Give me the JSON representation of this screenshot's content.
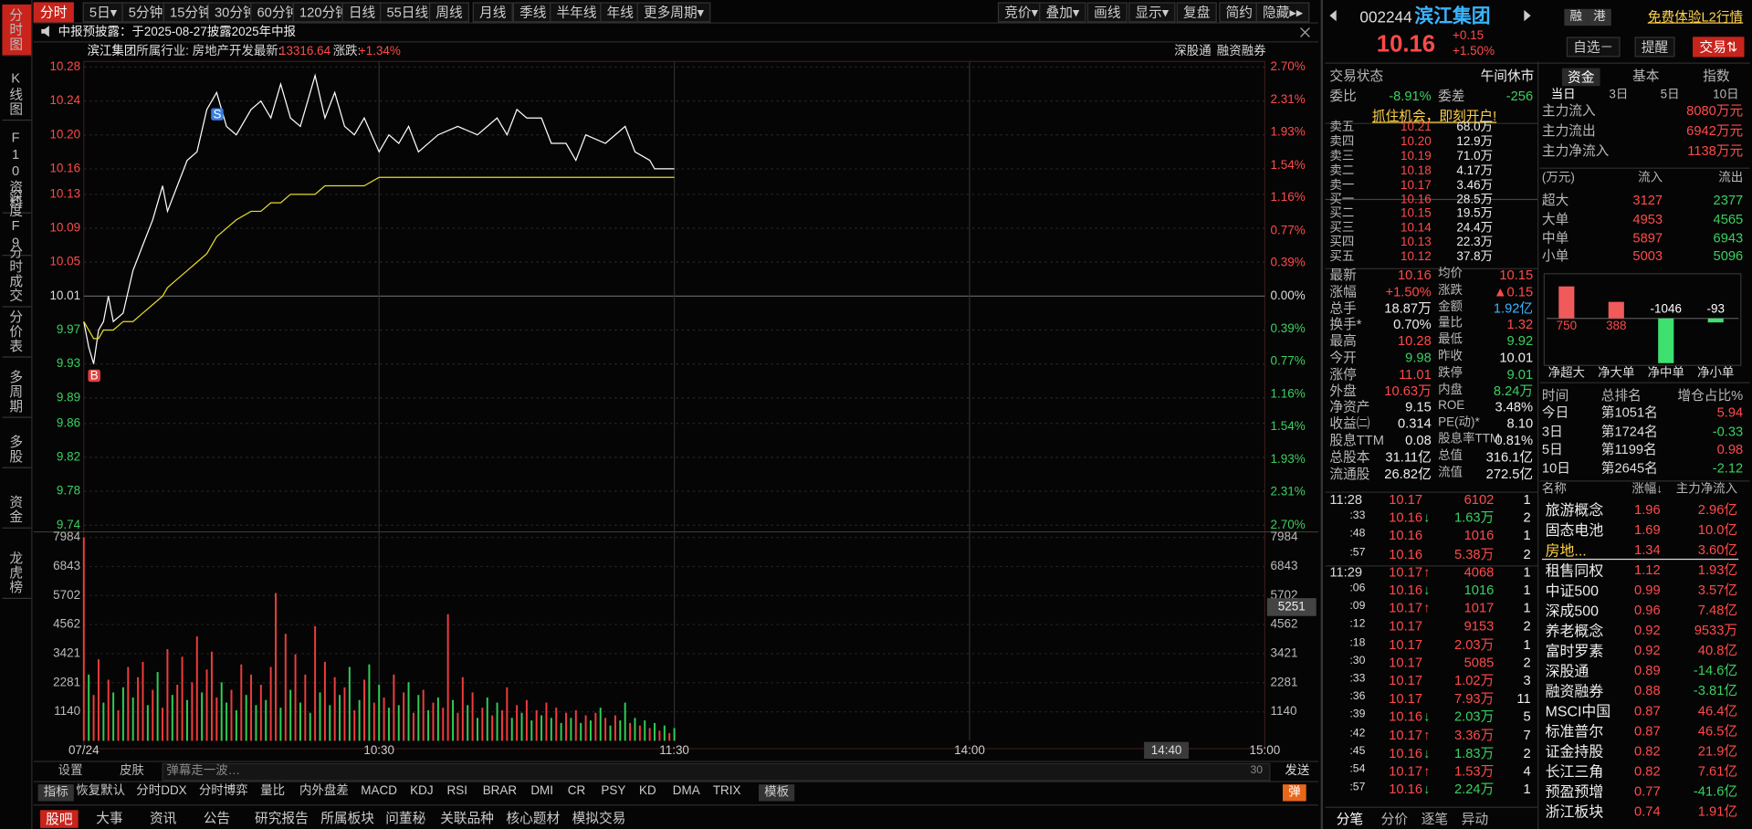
{
  "side_tabs": [
    "分时图",
    "K线图",
    "F10资料",
    "深度F9",
    "分时成交",
    "分价表",
    "多周期",
    "多股",
    "资金",
    "龙虎榜"
  ],
  "toolbar": {
    "periods": [
      "分时",
      "5日▾",
      "5分钟",
      "15分钟",
      "30分钟",
      "60分钟",
      "120分钟",
      "日线",
      "55日线",
      "周线",
      "月线",
      "季线",
      "半年线",
      "年线",
      "更多周期▾"
    ],
    "tools": [
      "竞价▾",
      "叠加▾",
      "画线",
      "显示▾",
      "复盘",
      "简约",
      "隐藏▸▸"
    ]
  },
  "notice": "中报预披露：于2025-08-27披露2025年中报",
  "info": {
    "name": "滨江集团",
    "industry": "所属行业: 房地产开发",
    "latest_label": "最新:",
    "latest": "13316.64",
    "change_label": "涨跌:",
    "change": "+1.34%",
    "links": [
      "深股通",
      "融资融券"
    ]
  },
  "chart_data": [
    {
      "type": "line",
      "x": [
        0,
        1,
        2,
        3,
        4,
        5,
        6,
        8,
        10,
        12,
        14,
        16,
        17,
        19,
        21,
        23,
        25,
        27,
        29,
        31,
        34,
        36,
        38,
        40,
        42,
        44,
        47,
        49,
        51,
        53,
        55,
        57,
        60,
        62,
        64,
        66,
        68,
        72,
        76,
        80,
        84,
        86,
        88,
        90,
        93,
        95,
        98,
        100,
        102,
        106,
        110,
        112,
        115,
        116,
        120
      ],
      "series": [
        {
          "color": "#ffffff",
          "values": [
            9.98,
            9.95,
            9.93,
            9.97,
            9.98,
            10.01,
            9.98,
            9.99,
            10.04,
            10.07,
            10.1,
            10.14,
            10.11,
            10.14,
            10.17,
            10.18,
            10.23,
            10.25,
            10.21,
            10.2,
            10.23,
            10.24,
            10.22,
            10.26,
            10.22,
            10.21,
            10.27,
            10.22,
            10.25,
            10.21,
            10.2,
            10.22,
            10.18,
            10.2,
            10.19,
            10.21,
            10.18,
            10.2,
            10.21,
            10.2,
            10.22,
            10.2,
            10.23,
            10.22,
            10.22,
            10.19,
            10.19,
            10.17,
            10.2,
            10.19,
            10.21,
            10.18,
            10.17,
            10.16,
            10.16
          ]
        },
        {
          "color": "#e6dc2a",
          "values": [
            9.98,
            9.97,
            9.96,
            9.96,
            9.97,
            9.97,
            9.97,
            9.98,
            9.98,
            9.99,
            10.0,
            10.01,
            10.02,
            10.03,
            10.04,
            10.05,
            10.06,
            10.08,
            10.09,
            10.1,
            10.11,
            10.11,
            10.12,
            10.12,
            10.13,
            10.13,
            10.13,
            10.14,
            10.14,
            10.14,
            10.14,
            10.14,
            10.15,
            10.15,
            10.15,
            10.15,
            10.15,
            10.15,
            10.15,
            10.15,
            10.15,
            10.15,
            10.15,
            10.15,
            10.15,
            10.15,
            10.15,
            10.15,
            10.15,
            10.15,
            10.15,
            10.15,
            10.15,
            10.15,
            10.15
          ]
        }
      ],
      "xlim": [
        0,
        240
      ],
      "xticks": [
        {
          "value": 0,
          "label": "07/24"
        },
        {
          "value": 60,
          "label": "10:30"
        },
        {
          "value": 120,
          "label": "11:30"
        },
        {
          "value": 180,
          "label": "14:00"
        },
        {
          "value": 240,
          "label": "15:00"
        }
      ],
      "ylim": [
        9.74,
        10.28
      ],
      "yticks": [
        10.28,
        10.24,
        {
          "value": 10.2,
          "label": "10.20"
        },
        10.16,
        10.13,
        10.09,
        10.05,
        10.01,
        9.97,
        9.93,
        9.89,
        9.86,
        9.82,
        9.78,
        9.74
      ],
      "y2lim": [
        -2.7,
        2.7
      ],
      "y2ticks": [
        {
          "value": 2.7,
          "label": "2.70%"
        },
        {
          "value": 2.31,
          "label": "2.31%"
        },
        {
          "value": 1.93,
          "label": "1.93%"
        },
        {
          "value": 1.54,
          "label": "1.54%"
        },
        {
          "value": 1.16,
          "label": "1.16%"
        },
        {
          "value": 0.77,
          "label": "0.77%"
        },
        {
          "value": 0.39,
          "label": "0.39%"
        },
        {
          "value": 0,
          "label": "0.00%"
        },
        {
          "value": -0.39,
          "label": "0.39%"
        },
        {
          "value": -0.77,
          "label": "0.77%"
        },
        {
          "value": -1.16,
          "label": "1.16%"
        },
        {
          "value": -1.54,
          "label": "1.54%"
        },
        {
          "value": -1.93,
          "label": "1.93%"
        },
        {
          "value": -2.31,
          "label": "2.31%"
        },
        {
          "value": -2.7,
          "label": "2.70%"
        }
      ],
      "annotations": [
        {
          "text": "B",
          "x": 2,
          "y": 9.93
        },
        {
          "text": "S",
          "x": 27,
          "y": 10.25
        }
      ],
      "cursor_label": {
        "value": 220,
        "label": "14:40"
      },
      "grid": true
    },
    {
      "type": "bar",
      "x": [
        0,
        1,
        2,
        3,
        4,
        5,
        6,
        7,
        8,
        9,
        10,
        11,
        12,
        13,
        14,
        15,
        16,
        17,
        18,
        19,
        20,
        21,
        22,
        23,
        24,
        25,
        26,
        27,
        28,
        29,
        30,
        31,
        32,
        33,
        34,
        35,
        36,
        37,
        38,
        39,
        40,
        41,
        42,
        43,
        44,
        45,
        46,
        47,
        48,
        49,
        50,
        51,
        52,
        53,
        54,
        55,
        56,
        57,
        58,
        59,
        60,
        61,
        62,
        63,
        64,
        65,
        66,
        67,
        68,
        69,
        70,
        71,
        72,
        73,
        74,
        75,
        76,
        77,
        78,
        79,
        80,
        81,
        82,
        83,
        84,
        85,
        86,
        87,
        88,
        89,
        90,
        91,
        92,
        93,
        94,
        95,
        96,
        97,
        98,
        99,
        100,
        101,
        102,
        103,
        104,
        105,
        106,
        107,
        108,
        109,
        110,
        111,
        112,
        113,
        114,
        115,
        116,
        117,
        118,
        119,
        120
      ],
      "values": [
        7984,
        2600,
        1800,
        3200,
        1500,
        2400,
        1900,
        1200,
        2100,
        2900,
        1700,
        2500,
        3100,
        1400,
        2000,
        2700,
        1300,
        3600,
        1800,
        2200,
        3300,
        1600,
        2300,
        4100,
        1900,
        2800,
        3500,
        1700,
        2300,
        1500,
        2000,
        1200,
        3000,
        1800,
        2600,
        1400,
        2200,
        1600,
        2900,
        5800,
        1300,
        4200,
        2000,
        3400,
        1500,
        2600,
        1100,
        4500,
        1900,
        3100,
        1400,
        2500,
        1800,
        2100,
        2900,
        1200,
        1600,
        2400,
        3000,
        1500,
        2200,
        1700,
        1300,
        2600,
        1400,
        1900,
        2300,
        1100,
        1800,
        2000,
        1200,
        1500,
        1700,
        1300,
        4970,
        1600,
        1100,
        2500,
        1400,
        1900,
        900,
        1300,
        1700,
        1000,
        1500,
        1200,
        2100,
        900,
        1400,
        1100,
        1600,
        800,
        1200,
        1000,
        1500,
        900,
        1300,
        700,
        1100,
        900,
        1200,
        700,
        1000,
        800,
        1100,
        1300,
        900,
        600,
        1000,
        800,
        1500,
        700,
        900,
        600,
        800,
        500,
        700,
        400,
        600,
        300,
        500
      ],
      "up": [
        true,
        false,
        true,
        true,
        false,
        true,
        false,
        true,
        false,
        true,
        false,
        true,
        true,
        false,
        true,
        false,
        true,
        true,
        false,
        true,
        true,
        false,
        true,
        true,
        false,
        true,
        true,
        true,
        false,
        false,
        true,
        false,
        true,
        false,
        true,
        false,
        true,
        false,
        true,
        true,
        false,
        true,
        false,
        true,
        false,
        true,
        false,
        true,
        false,
        true,
        false,
        true,
        false,
        true,
        false,
        true,
        false,
        true,
        false,
        true,
        false,
        true,
        false,
        true,
        false,
        true,
        false,
        true,
        false,
        true,
        false,
        true,
        false,
        true,
        true,
        false,
        true,
        true,
        false,
        true,
        false,
        true,
        false,
        true,
        false,
        true,
        true,
        false,
        true,
        false,
        true,
        false,
        true,
        false,
        true,
        false,
        true,
        false,
        true,
        false,
        true,
        false,
        true,
        false,
        true,
        false,
        true,
        false,
        true,
        false,
        false,
        true,
        false,
        true,
        false,
        true,
        false,
        true,
        false,
        true,
        false
      ],
      "colors": {
        "up": "#f23c3c",
        "down": "#2fcf55"
      },
      "xlim": [
        0,
        240
      ],
      "ylim": [
        0,
        7984
      ],
      "yticks": [
        1140,
        2281,
        3421,
        4562,
        5702,
        6843,
        7984
      ],
      "cursor_value": 5251
    },
    {
      "type": "bar",
      "categories": [
        "净超大",
        "净大单",
        "净中单",
        "净小单"
      ],
      "values": [
        750,
        388,
        -1046,
        -93
      ],
      "colors": {
        "up": "#f05a5a",
        "down": "#3ee070"
      }
    }
  ],
  "quote": {
    "code": "002244",
    "name": "滨江集团",
    "price": "10.16",
    "change": "+0.15",
    "pct": "+1.50%",
    "badges": [
      "融",
      "港"
    ],
    "status_label": "交易状态",
    "status": "午间休市",
    "wb_label": "委比",
    "wb": "-8.91%",
    "wc_label": "委差",
    "wc": "-256",
    "promo": "抓住机会，即刻开户!",
    "book": [
      [
        "卖五",
        "10.21",
        "68.0万"
      ],
      [
        "卖四",
        "10.20",
        "12.9万"
      ],
      [
        "卖三",
        "10.19",
        "71.0万"
      ],
      [
        "卖二",
        "10.18",
        "4.17万"
      ],
      [
        "卖一",
        "10.17",
        "3.46万"
      ],
      [
        "买一",
        "10.16",
        "28.5万"
      ],
      [
        "买二",
        "10.15",
        "19.5万"
      ],
      [
        "买三",
        "10.14",
        "24.4万"
      ],
      [
        "买四",
        "10.13",
        "22.3万"
      ],
      [
        "买五",
        "10.12",
        "37.8万"
      ]
    ],
    "stats": [
      [
        "最新",
        "10.16",
        "均价",
        "10.15"
      ],
      [
        "涨幅",
        "+1.50%",
        "涨跌",
        "▲0.15"
      ],
      [
        "总手",
        "18.87万",
        "金额",
        "1.92亿"
      ],
      [
        "换手*",
        "0.70%",
        "量比",
        "1.32"
      ],
      [
        "最高",
        "10.28",
        "最低",
        "9.92"
      ],
      [
        "今开",
        "9.98",
        "昨收",
        "10.01"
      ],
      [
        "涨停",
        "11.01",
        "跌停",
        "9.01"
      ],
      [
        "外盘",
        "10.63万",
        "内盘",
        "8.24万"
      ],
      [
        "净资产",
        "9.15",
        "ROE",
        "3.48%"
      ],
      [
        "收益㈡",
        "0.314",
        "PE(动)*",
        "8.10"
      ],
      [
        "股息TTM",
        "0.08",
        "股息率TTM",
        "0.81%"
      ],
      [
        "总股本",
        "31.11亿",
        "总值",
        "316.1亿"
      ],
      [
        "流通股",
        "26.82亿",
        "流值",
        "272.5亿"
      ]
    ],
    "ticks": [
      {
        "time": "11:28",
        "price": "10.17",
        "vol": "6102",
        "n": "1"
      },
      {
        "time": ":33",
        "price": "10.16",
        "arrow": "↓",
        "vol": "1.63万",
        "n": "2"
      },
      {
        "time": ":48",
        "price": "10.16",
        "vol": "1016",
        "n": "1"
      },
      {
        "time": ":57",
        "price": "10.16",
        "vol": "5.38万",
        "n": "2"
      },
      {
        "time": "11:29",
        "price": "10.17",
        "arrow": "↑",
        "vol": "4068",
        "n": "1"
      },
      {
        "time": ":06",
        "price": "10.16",
        "arrow": "↓",
        "vol": "1016",
        "n": "1"
      },
      {
        "time": ":09",
        "price": "10.17",
        "arrow": "↑",
        "vol": "1017",
        "n": "1"
      },
      {
        "time": ":12",
        "price": "10.17",
        "vol": "9153",
        "n": "2"
      },
      {
        "time": ":18",
        "price": "10.17",
        "vol": "2.03万",
        "n": "1"
      },
      {
        "time": ":30",
        "price": "10.17",
        "vol": "5085",
        "n": "2"
      },
      {
        "time": ":33",
        "price": "10.17",
        "vol": "1.02万",
        "n": "3"
      },
      {
        "time": ":36",
        "price": "10.17",
        "vol": "7.93万",
        "n": "11"
      },
      {
        "time": ":39",
        "price": "10.16",
        "arrow": "↓",
        "vol": "2.03万",
        "n": "5"
      },
      {
        "time": ":42",
        "price": "10.17",
        "arrow": "↑",
        "vol": "3.36万",
        "n": "7"
      },
      {
        "time": ":45",
        "price": "10.16",
        "arrow": "↓",
        "vol": "1.83万",
        "n": "2"
      },
      {
        "time": ":54",
        "price": "10.17",
        "arrow": "↑",
        "vol": "1.53万",
        "n": "4"
      },
      {
        "time": ":57",
        "price": "10.16",
        "arrow": "↓",
        "vol": "2.24万",
        "n": "1"
      }
    ],
    "tabs": [
      "分笔",
      "分价",
      "逐笔",
      "异动"
    ]
  },
  "fund": {
    "l2": "免费体验L2行情",
    "watch": "自选－",
    "alert": "提醒",
    "trade": "交易⇅",
    "tabs": [
      "资金",
      "基本",
      "指数"
    ],
    "periods": [
      "当日",
      "3日",
      "5日",
      "10日"
    ],
    "main": [
      [
        "主力流入",
        "8080万元"
      ],
      [
        "主力流出",
        "6942万元"
      ],
      [
        "主力净流入",
        "1138万元"
      ]
    ],
    "unit": "(万元)",
    "in": "流入",
    "out": "流出",
    "flows": [
      [
        "超大",
        "3127",
        "2377"
      ],
      [
        "大单",
        "4953",
        "4565"
      ],
      [
        "中单",
        "5897",
        "6943"
      ],
      [
        "小单",
        "5003",
        "5096"
      ]
    ],
    "rank_head": [
      "时间",
      "总排名",
      "增仓占比%"
    ],
    "ranks": [
      [
        "今日",
        "第1051名",
        "5.94"
      ],
      [
        "3日",
        "第1724名",
        "-0.33"
      ],
      [
        "5日",
        "第1199名",
        "0.98"
      ],
      [
        "10日",
        "第2645名",
        "-2.12"
      ]
    ],
    "sector_head": [
      "名称",
      "涨幅↓",
      "主力净流入"
    ],
    "sectors": [
      [
        "旅游概念",
        "1.96",
        "2.96亿"
      ],
      [
        "固态电池",
        "1.69",
        "10.0亿"
      ],
      [
        "房地...",
        "1.34",
        "3.60亿"
      ],
      [
        "租售同权",
        "1.12",
        "1.93亿"
      ],
      [
        "中证500",
        "0.99",
        "3.57亿"
      ],
      [
        "深成500",
        "0.96",
        "7.48亿"
      ],
      [
        "养老概念",
        "0.92",
        "9533万"
      ],
      [
        "富时罗素",
        "0.92",
        "40.8亿"
      ],
      [
        "深股通",
        "0.89",
        "-14.6亿"
      ],
      [
        "融资融券",
        "0.88",
        "-3.81亿"
      ],
      [
        "MSCI中国",
        "0.87",
        "46.4亿"
      ],
      [
        "标准普尔",
        "0.87",
        "46.5亿"
      ],
      [
        "证金持股",
        "0.82",
        "21.9亿"
      ],
      [
        "长江三角",
        "0.82",
        "7.61亿"
      ],
      [
        "预盈预增",
        "0.77",
        "-41.6亿"
      ],
      [
        "浙江板块",
        "0.74",
        "1.91亿"
      ]
    ]
  },
  "bottom": {
    "settings": "设置",
    "skin": "皮肤",
    "danmu": "弹幕走一波…",
    "count": "30",
    "send": "发送",
    "indicators": [
      "指标",
      "恢复默认",
      "分时DDX",
      "分时博弈",
      "量比",
      "内外盘差",
      "MACD",
      "KDJ",
      "RSI",
      "BRAR",
      "DMI",
      "CR",
      "PSY",
      "KD",
      "DMA",
      "TRIX",
      "模板"
    ],
    "toggle": "弹",
    "tabs": [
      "股吧",
      "大事",
      "资讯",
      "公告",
      "研究报告",
      "所属板块",
      "问董秘",
      "关联品种",
      "核心题材",
      "模拟交易"
    ]
  }
}
